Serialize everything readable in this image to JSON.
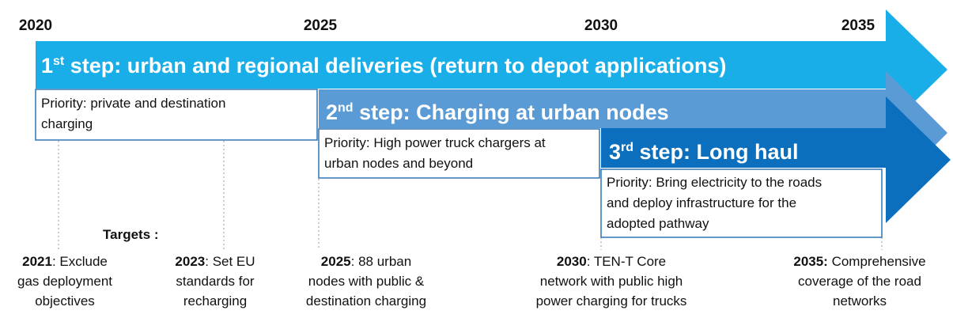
{
  "years": [
    "2020",
    "2025",
    "2030",
    "2035"
  ],
  "steps": [
    {
      "number": "1",
      "ordinal": "st",
      "text": " step: urban and regional deliveries (return to depot applications)",
      "priority": [
        "Priority: private and destination",
        "charging"
      ]
    },
    {
      "number": "2",
      "ordinal": "nd",
      "text": " step: Charging at urban nodes",
      "priority": [
        "Priority: High power truck chargers at",
        "urban nodes and beyond"
      ]
    },
    {
      "number": "3",
      "ordinal": "rd",
      "text": " step: Long haul",
      "priority": [
        "Priority: Bring electricity to the roads",
        "and deploy infrastructure for the",
        "adopted pathway"
      ]
    }
  ],
  "targets_label": "Targets :",
  "targets": [
    {
      "year": "2021",
      "first": ": Exclude",
      "lines": [
        "gas deployment",
        "objectives"
      ]
    },
    {
      "year": "2023",
      "first": ": Set EU",
      "lines": [
        "standards for",
        "recharging"
      ]
    },
    {
      "year": "2025",
      "first": ": 88 urban",
      "lines": [
        "nodes with public &",
        "destination charging"
      ]
    },
    {
      "year": "2030",
      "first": ": TEN-T Core",
      "lines": [
        "network with public high",
        "power charging for trucks"
      ]
    },
    {
      "year": "2035:",
      "first": " Comprehensive",
      "lines": [
        "coverage of the road",
        "networks"
      ]
    }
  ]
}
